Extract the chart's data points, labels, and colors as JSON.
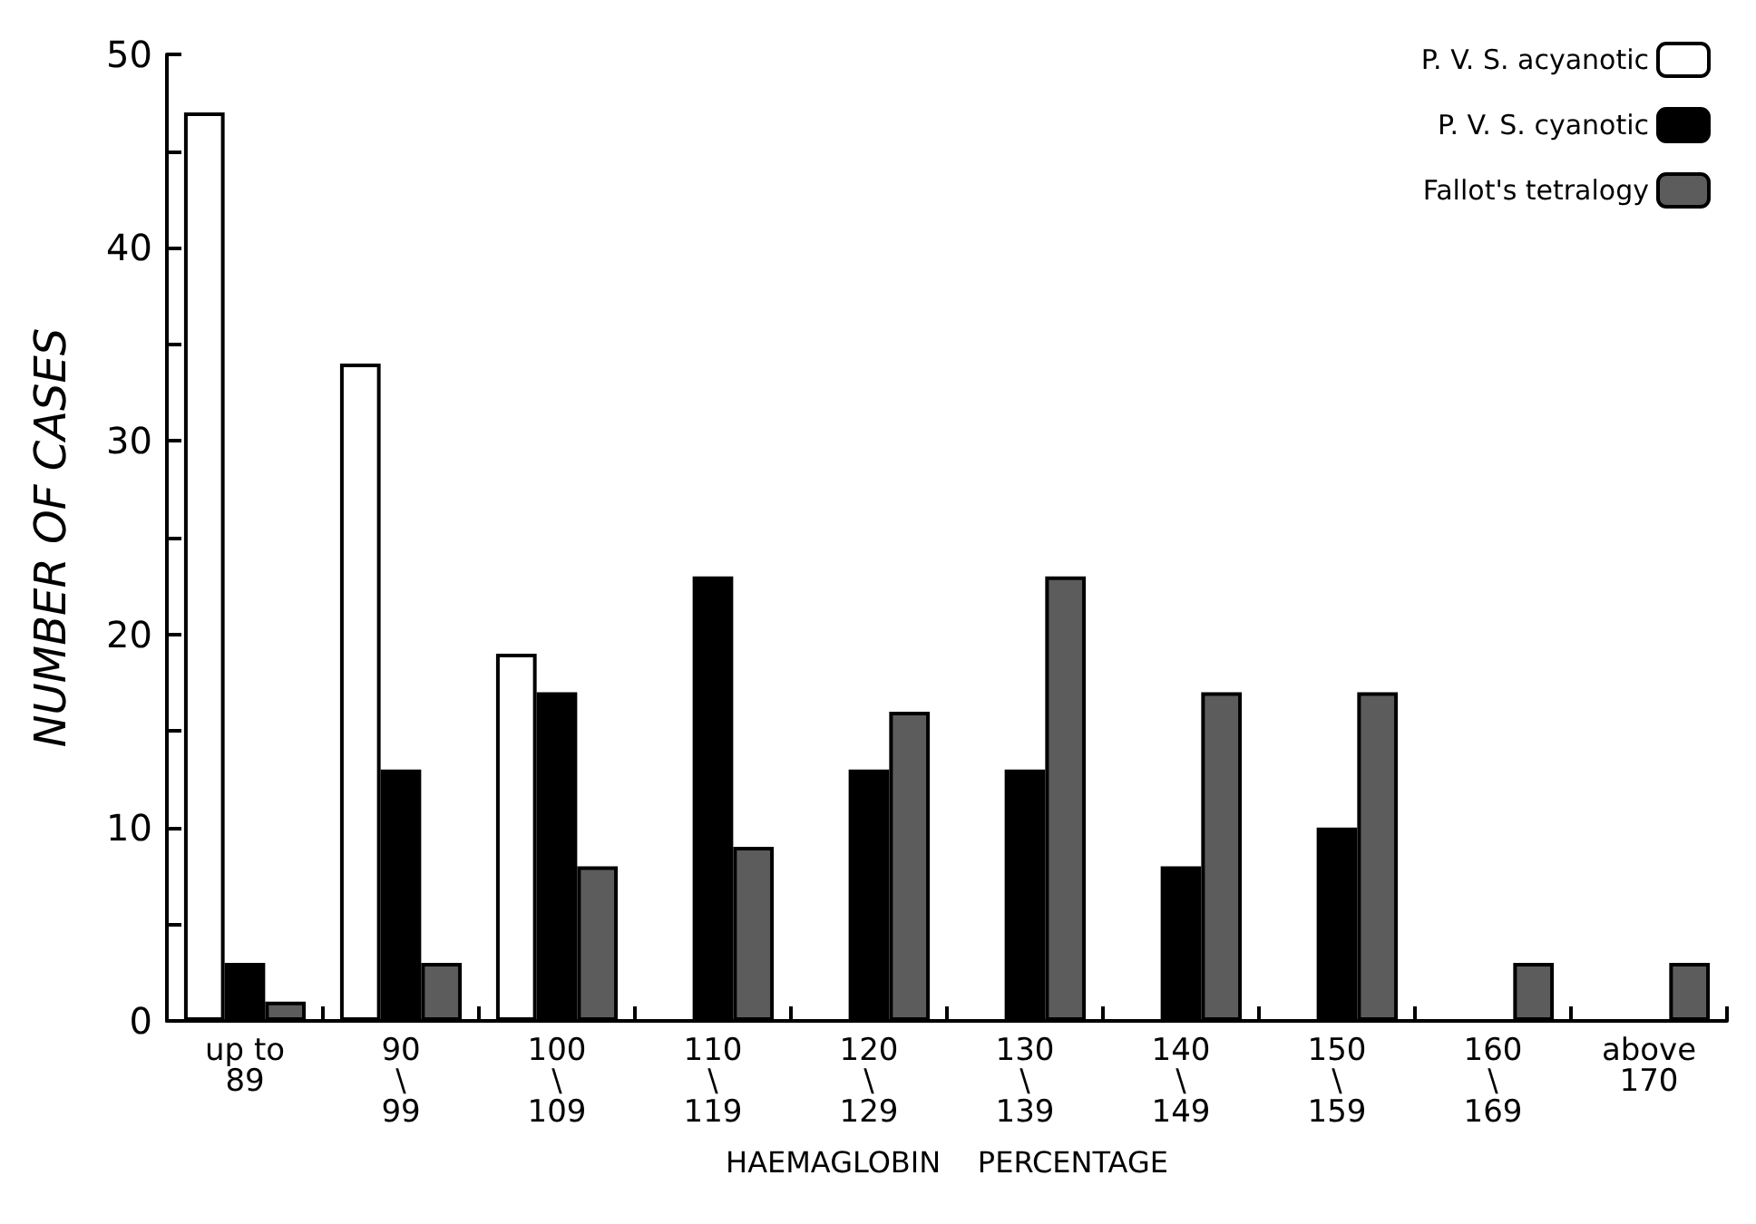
{
  "chart_data": {
    "type": "bar",
    "xlabel": "HAEMAGLOBIN    PERCENTAGE",
    "ylabel": "NUMBER OF CASES",
    "categories": [
      "up to\n89",
      "90\n\\\n99",
      "100\n\\\n109",
      "110\n\\\n119",
      "120\n\\\n129",
      "130\n\\\n139",
      "140\n\\\n149",
      "150\n\\\n159",
      "160\n\\\n169",
      "above\n170"
    ],
    "series": [
      {
        "name": "P. V. S. acyanotic",
        "color": "#ffffff",
        "values": [
          47,
          34,
          19,
          null,
          null,
          null,
          null,
          null,
          null,
          null
        ]
      },
      {
        "name": "P. V. S. cyanotic",
        "color": "#000000",
        "values": [
          3,
          13,
          17,
          23,
          13,
          13,
          8,
          10,
          null,
          null
        ]
      },
      {
        "name": "Fallot's tetralogy",
        "color": "#5c5c5c",
        "values": [
          1,
          3,
          8,
          9,
          16,
          23,
          17,
          17,
          3,
          3
        ]
      }
    ],
    "ylim": [
      0,
      50
    ],
    "yticks": [
      0,
      10,
      20,
      30,
      40,
      50
    ],
    "grid": false,
    "legend": "top right"
  }
}
